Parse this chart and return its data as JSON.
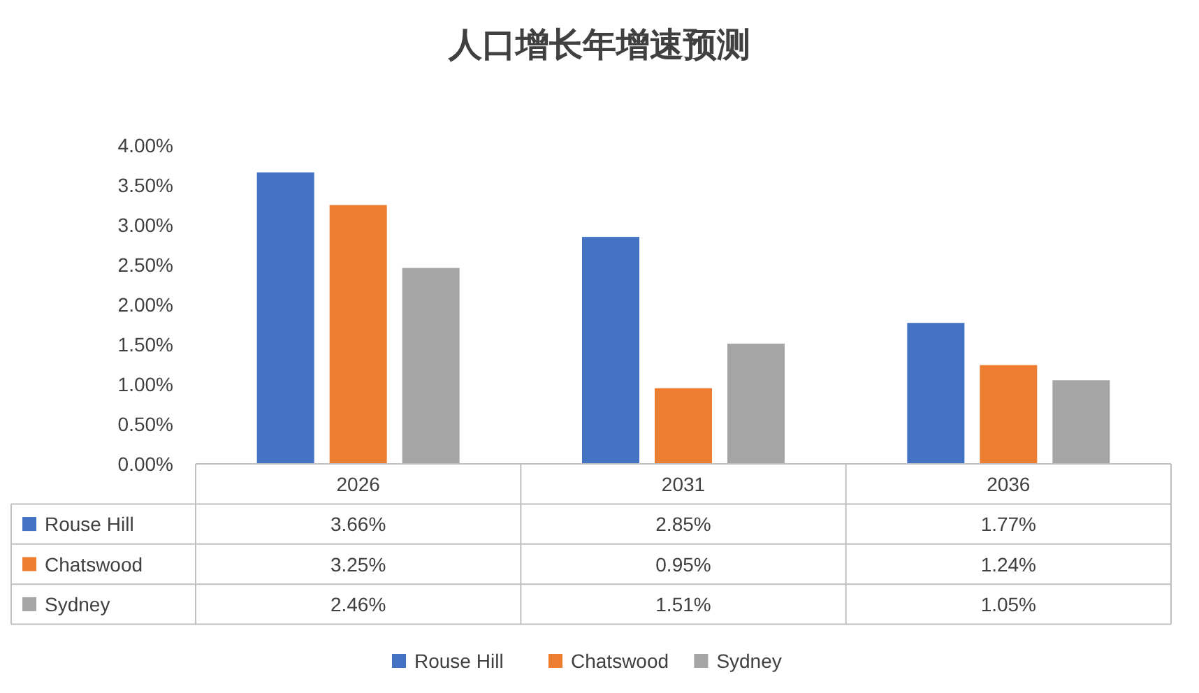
{
  "chart_data": {
    "type": "bar",
    "title": "人口增长年增速预测",
    "categories": [
      "2026",
      "2031",
      "2036"
    ],
    "series": [
      {
        "name": "Rouse Hill",
        "color": "#4472c4",
        "values": [
          3.66,
          2.85,
          1.77
        ],
        "value_labels": [
          "3.66%",
          "2.85%",
          "1.77%"
        ]
      },
      {
        "name": "Chatswood",
        "color": "#ed7d31",
        "values": [
          3.25,
          0.95,
          1.24
        ],
        "value_labels": [
          "3.25%",
          "0.95%",
          "1.24%"
        ]
      },
      {
        "name": "Sydney",
        "color": "#a5a5a5",
        "values": [
          2.46,
          1.51,
          1.05
        ],
        "value_labels": [
          "2.46%",
          "1.51%",
          "1.05%"
        ]
      }
    ],
    "ylim": [
      0,
      4
    ],
    "yticks": [
      {
        "value": 0,
        "label": "0.00%"
      },
      {
        "value": 0.5,
        "label": "0.50%"
      },
      {
        "value": 1,
        "label": "1.00%"
      },
      {
        "value": 1.5,
        "label": "1.50%"
      },
      {
        "value": 2,
        "label": "2.00%"
      },
      {
        "value": 2.5,
        "label": "2.50%"
      },
      {
        "value": 3,
        "label": "3.00%"
      },
      {
        "value": 3.5,
        "label": "3.50%"
      },
      {
        "value": 4,
        "label": "4.00%"
      }
    ],
    "grid": false,
    "legend": "bottom"
  }
}
